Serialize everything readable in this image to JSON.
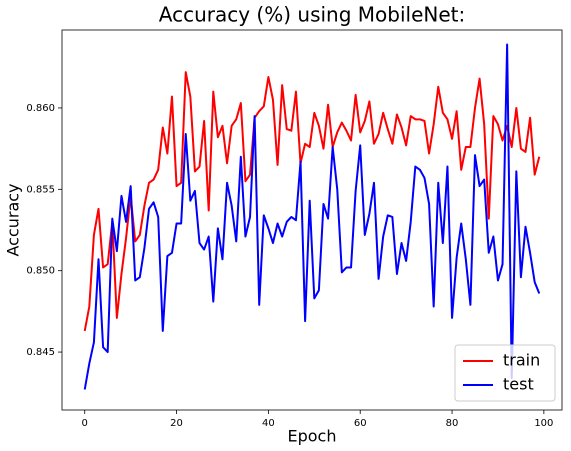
{
  "chart_data": {
    "type": "line",
    "title": "Accuracy (%) using MobileNet:",
    "xlabel": "Epoch",
    "ylabel": "Accuracy",
    "x": [
      0,
      1,
      2,
      3,
      4,
      5,
      6,
      7,
      8,
      9,
      10,
      11,
      12,
      13,
      14,
      15,
      16,
      17,
      18,
      19,
      20,
      21,
      22,
      23,
      24,
      25,
      26,
      27,
      28,
      29,
      30,
      31,
      32,
      33,
      34,
      35,
      36,
      37,
      38,
      39,
      40,
      41,
      42,
      43,
      44,
      45,
      46,
      47,
      48,
      49,
      50,
      51,
      52,
      53,
      54,
      55,
      56,
      57,
      58,
      59,
      60,
      61,
      62,
      63,
      64,
      65,
      66,
      67,
      68,
      69,
      70,
      71,
      72,
      73,
      74,
      75,
      76,
      77,
      78,
      79,
      80,
      81,
      82,
      83,
      84,
      85,
      86,
      87,
      88,
      89,
      90,
      91,
      92,
      93,
      94,
      95,
      96,
      97,
      98,
      99
    ],
    "series": [
      {
        "name": "train",
        "color": "#ff0000",
        "values": [
          0.8463,
          0.8478,
          0.8522,
          0.8538,
          0.8502,
          0.8504,
          0.853,
          0.8471,
          0.8498,
          0.852,
          0.8546,
          0.8518,
          0.8522,
          0.854,
          0.8554,
          0.8556,
          0.8562,
          0.8588,
          0.8572,
          0.8607,
          0.8552,
          0.8554,
          0.8622,
          0.8607,
          0.8561,
          0.8564,
          0.8592,
          0.8537,
          0.861,
          0.8582,
          0.8589,
          0.8566,
          0.8589,
          0.8593,
          0.8603,
          0.8555,
          0.8559,
          0.8594,
          0.8598,
          0.8601,
          0.8619,
          0.8605,
          0.8565,
          0.8614,
          0.8587,
          0.8586,
          0.861,
          0.8566,
          0.8578,
          0.8576,
          0.8597,
          0.8589,
          0.8575,
          0.8602,
          0.8576,
          0.8585,
          0.8591,
          0.8586,
          0.858,
          0.8608,
          0.8585,
          0.8592,
          0.8604,
          0.8578,
          0.8584,
          0.8597,
          0.8587,
          0.8578,
          0.8596,
          0.8588,
          0.8577,
          0.8595,
          0.8593,
          0.8593,
          0.8592,
          0.8572,
          0.859,
          0.8613,
          0.8597,
          0.8593,
          0.8581,
          0.8598,
          0.8562,
          0.8576,
          0.8576,
          0.86,
          0.8618,
          0.859,
          0.8532,
          0.8595,
          0.859,
          0.858,
          0.8589,
          0.8576,
          0.86,
          0.8575,
          0.8573,
          0.8594,
          0.8559,
          0.857
        ]
      },
      {
        "name": "test",
        "color": "#0000ff",
        "values": [
          0.8427,
          0.8443,
          0.8456,
          0.8507,
          0.8453,
          0.845,
          0.8532,
          0.8512,
          0.8546,
          0.853,
          0.8552,
          0.8494,
          0.8496,
          0.8514,
          0.8538,
          0.8542,
          0.8533,
          0.8463,
          0.8509,
          0.8511,
          0.8529,
          0.8529,
          0.8584,
          0.8543,
          0.8549,
          0.8517,
          0.8513,
          0.8521,
          0.8481,
          0.8526,
          0.8507,
          0.8554,
          0.854,
          0.8518,
          0.857,
          0.8521,
          0.8533,
          0.8595,
          0.8479,
          0.8534,
          0.8526,
          0.8517,
          0.8529,
          0.8521,
          0.853,
          0.8533,
          0.8531,
          0.8567,
          0.8469,
          0.8543,
          0.8483,
          0.8488,
          0.8541,
          0.8532,
          0.8576,
          0.855,
          0.8499,
          0.8502,
          0.8502,
          0.8549,
          0.8577,
          0.8522,
          0.8535,
          0.8554,
          0.8495,
          0.8521,
          0.8534,
          0.8533,
          0.8498,
          0.8517,
          0.8506,
          0.853,
          0.8564,
          0.8562,
          0.8557,
          0.8541,
          0.8478,
          0.8554,
          0.8517,
          0.8564,
          0.8471,
          0.8508,
          0.8529,
          0.8507,
          0.8479,
          0.8571,
          0.8552,
          0.8556,
          0.8511,
          0.8521,
          0.8494,
          0.8504,
          0.8639,
          0.8434,
          0.8561,
          0.8496,
          0.8527,
          0.8511,
          0.8493,
          0.8486
        ]
      }
    ],
    "xlim": [
      -4.95,
      103.95
    ],
    "ylim": [
      0.84144,
      0.86479
    ],
    "xticks": [
      0,
      20,
      40,
      60,
      80,
      100
    ],
    "yticks": [
      0.845,
      {
        "value": 0.85,
        "label": "0.850"
      },
      0.855,
      {
        "value": 0.86,
        "label": "0.860"
      }
    ],
    "legend": "lower right"
  }
}
